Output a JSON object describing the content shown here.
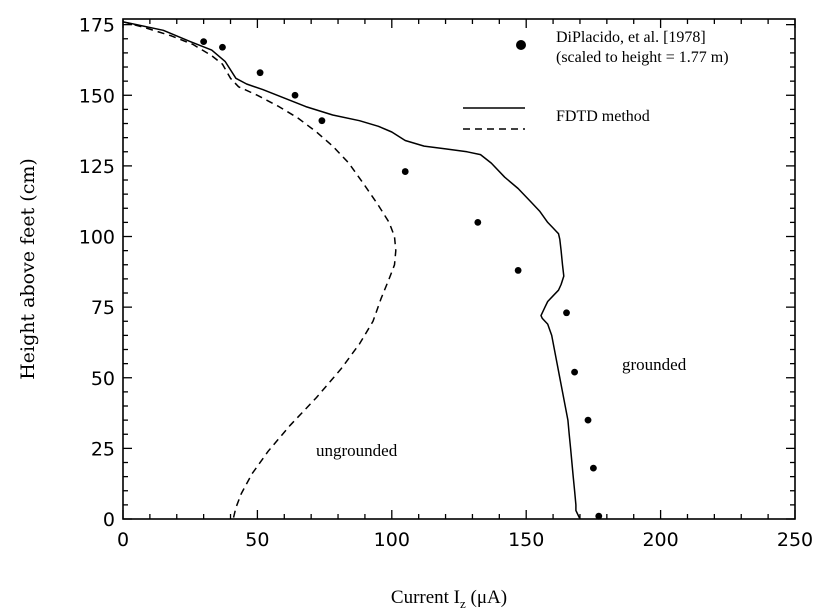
{
  "chart_data": {
    "type": "line",
    "xlabel": "Current I",
    "xlabel_sub": "z",
    "xlabel_unit": " (μA)",
    "ylabel": "Height above feet (cm)",
    "xlim": [
      0,
      250
    ],
    "ylim": [
      0,
      177
    ],
    "xticks": [
      "0",
      "50",
      "100",
      "150",
      "200",
      "250"
    ],
    "yticks": [
      "0",
      "25",
      "50",
      "75",
      "100",
      "125",
      "150",
      "175"
    ],
    "grid": false,
    "legend_position": "top-right",
    "legend": {
      "dots_label_line1": "DiPlacido, et al. [1978]",
      "dots_label_line2": "(scaled to height = 1.77 m)",
      "fdtd_label": "FDTD method"
    },
    "annotations": {
      "grounded": "grounded",
      "ungrounded": "ungrounded"
    },
    "series": [
      {
        "style": "solid",
        "points": [
          [
            0,
            176
          ],
          [
            5,
            175
          ],
          [
            15,
            173
          ],
          [
            25,
            169
          ],
          [
            33,
            166
          ],
          [
            38,
            162
          ],
          [
            42,
            156
          ],
          [
            46,
            154
          ],
          [
            52,
            152
          ],
          [
            60,
            149
          ],
          [
            68,
            146
          ],
          [
            78,
            143
          ],
          [
            88,
            141
          ],
          [
            95,
            139
          ],
          [
            100,
            137
          ],
          [
            105,
            134
          ],
          [
            112,
            132
          ],
          [
            120,
            131
          ],
          [
            128,
            130
          ],
          [
            133,
            129
          ],
          [
            137,
            126
          ],
          [
            142,
            121
          ],
          [
            147,
            117
          ],
          [
            152,
            112
          ],
          [
            155,
            109
          ],
          [
            158,
            105
          ],
          [
            160,
            103
          ],
          [
            161,
            102
          ],
          [
            162,
            101
          ],
          [
            162.5,
            99
          ],
          [
            163,
            95
          ],
          [
            163.5,
            90
          ],
          [
            164,
            86
          ],
          [
            163,
            83
          ],
          [
            162,
            81
          ],
          [
            160,
            79
          ],
          [
            158,
            77
          ],
          [
            157,
            75
          ],
          [
            156,
            73
          ],
          [
            155.5,
            72
          ],
          [
            156,
            71
          ],
          [
            158,
            69
          ],
          [
            159.5,
            65
          ],
          [
            160.5,
            60
          ],
          [
            161.5,
            55
          ],
          [
            162.5,
            50
          ],
          [
            163.5,
            45
          ],
          [
            164.5,
            40
          ],
          [
            165.5,
            35
          ],
          [
            166,
            30
          ],
          [
            166.5,
            25
          ],
          [
            167,
            20
          ],
          [
            167.5,
            15
          ],
          [
            168,
            10
          ],
          [
            168.5,
            5
          ],
          [
            168.5,
            3
          ],
          [
            170,
            0
          ]
        ]
      },
      {
        "style": "dashed",
        "points": [
          [
            0,
            176
          ],
          [
            8,
            174
          ],
          [
            18,
            171
          ],
          [
            26,
            168
          ],
          [
            33,
            164
          ],
          [
            37,
            161
          ],
          [
            40,
            156
          ],
          [
            43,
            153
          ],
          [
            50,
            150
          ],
          [
            58,
            146
          ],
          [
            65,
            142
          ],
          [
            72,
            137
          ],
          [
            78,
            132
          ],
          [
            84,
            126
          ],
          [
            90,
            118
          ],
          [
            95,
            111
          ],
          [
            99,
            105
          ],
          [
            101,
            100
          ],
          [
            101.5,
            95
          ],
          [
            101,
            90
          ],
          [
            99,
            85
          ],
          [
            96,
            78
          ],
          [
            93,
            70
          ],
          [
            88,
            62
          ],
          [
            81,
            53
          ],
          [
            72,
            43
          ],
          [
            62,
            33
          ],
          [
            54,
            24
          ],
          [
            48,
            16
          ],
          [
            44,
            9
          ],
          [
            42,
            4
          ],
          [
            41,
            0
          ]
        ]
      },
      {
        "style": "dots",
        "points": [
          [
            30,
            169
          ],
          [
            37,
            167
          ],
          [
            51,
            158
          ],
          [
            64,
            150
          ],
          [
            74,
            141
          ],
          [
            105,
            123
          ],
          [
            132,
            105
          ],
          [
            147,
            88
          ],
          [
            165,
            73
          ],
          [
            168,
            52
          ],
          [
            173,
            35
          ],
          [
            175,
            18
          ],
          [
            177,
            1
          ]
        ]
      }
    ]
  }
}
